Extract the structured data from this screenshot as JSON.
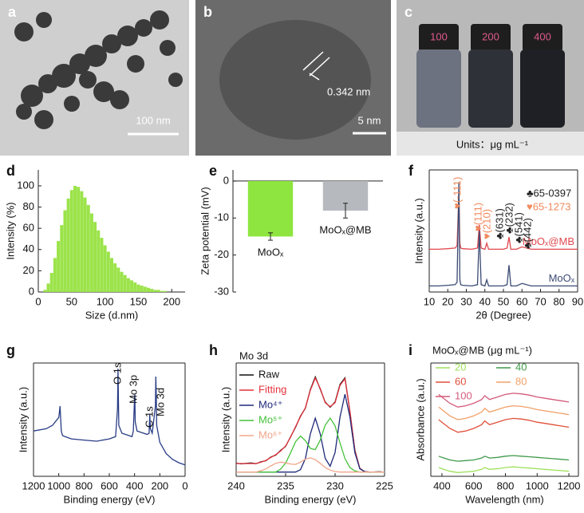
{
  "images": [
    {
      "label": "a",
      "scale_bar": "100 nm"
    },
    {
      "label": "b",
      "annotation": "0.342 nm",
      "scale_bar": "5 nm"
    },
    {
      "label": "c",
      "vials": [
        "100",
        "200",
        "400"
      ],
      "caption": "Units：μg mL⁻¹"
    }
  ],
  "chart_data": [
    {
      "type": "bar",
      "label": "d",
      "xlabel": "Size (d.nm)",
      "ylabel": "Intensity (%)",
      "color": "#9be34a",
      "x": [
        10,
        15,
        20,
        25,
        30,
        35,
        40,
        45,
        50,
        55,
        60,
        65,
        70,
        75,
        80,
        85,
        90,
        95,
        100,
        105,
        110,
        115,
        120,
        125,
        130,
        135,
        140,
        145,
        150,
        155,
        160,
        165,
        170,
        175,
        180,
        185,
        190
      ],
      "values": [
        2,
        8,
        18,
        32,
        48,
        63,
        77,
        88,
        96,
        100,
        99,
        95,
        89,
        82,
        74,
        66,
        58,
        51,
        44,
        38,
        32,
        27,
        23,
        19,
        16,
        13,
        11,
        9,
        7,
        6,
        5,
        4,
        3,
        2,
        2,
        1,
        1
      ],
      "xlim": [
        0,
        220
      ],
      "xticks": [
        0,
        50,
        100,
        150,
        200
      ],
      "ylim": [
        0,
        115
      ],
      "yticks": [
        0,
        20,
        40,
        60,
        80,
        100
      ]
    },
    {
      "type": "bar",
      "label": "e",
      "ylabel": "Zeta potential (mV)",
      "categories": [
        "MoOₓ",
        "MoOₓ@MB"
      ],
      "values": [
        -15,
        -8
      ],
      "errors": [
        1,
        2
      ],
      "colors": [
        "#8ee53f",
        "#b6b9bd"
      ],
      "ylim": [
        -30,
        3
      ],
      "yticks": [
        0,
        -10,
        -20,
        -30
      ]
    },
    {
      "type": "line",
      "label": "f",
      "xlabel": "2θ (Degree)",
      "ylabel": "Intensity (a.u.)",
      "x": [
        10,
        15,
        20,
        24,
        25,
        26,
        26.5,
        27,
        28,
        33,
        36,
        37,
        38,
        40,
        41,
        42,
        45,
        50,
        52,
        53,
        54,
        57,
        60,
        65,
        70,
        75,
        80,
        85,
        90
      ],
      "series": [
        {
          "name": "MoOₓ@MB",
          "color": "#e0484f",
          "values": [
            35,
            35,
            35.5,
            36,
            38,
            80,
            40,
            36,
            35.5,
            35,
            36,
            55,
            36,
            35,
            40,
            35,
            35,
            35,
            36,
            45,
            35,
            35,
            37,
            35,
            35,
            35,
            35,
            35,
            35
          ]
        },
        {
          "name": "MoOₓ",
          "color": "#3a4a73",
          "values": [
            5,
            5,
            5.5,
            6,
            8,
            90,
            10,
            6,
            5.5,
            5,
            6,
            50,
            6,
            5,
            10,
            5,
            5,
            5,
            6,
            22,
            5,
            5,
            7,
            5,
            5,
            5,
            5,
            5,
            5
          ]
        }
      ],
      "legend": [
        {
          "text": "♣65-0397",
          "color": "#222222"
        },
        {
          "text": "♥65-1273",
          "color": "#f08a5d"
        }
      ],
      "annotations": [
        {
          "text": "♥(-111)",
          "color": "#f08a5d"
        },
        {
          "text": "♥(111)",
          "color": "#f08a5d"
        },
        {
          "text": "♥(210)",
          "color": "#f08a5d"
        },
        {
          "text": "♣(631)",
          "color": "#222222"
        },
        {
          "text": "♣(232)",
          "color": "#222222"
        },
        {
          "text": "♣(541)",
          "color": "#222222"
        },
        {
          "text": "♣(442)",
          "color": "#222222"
        }
      ],
      "xlim": [
        10,
        90
      ],
      "xticks": [
        10,
        20,
        30,
        40,
        50,
        60,
        70,
        80,
        90
      ],
      "ylim": [
        0,
        100
      ]
    },
    {
      "type": "line",
      "label": "g",
      "xlabel": "Binding energy (eV)",
      "ylabel": "Intensity (a.u.)",
      "color": "#283c86",
      "x": [
        1200,
        1100,
        1050,
        1000,
        990,
        980,
        970,
        950,
        900,
        800,
        700,
        600,
        550,
        535,
        531,
        525,
        500,
        420,
        410,
        400,
        398,
        395,
        380,
        300,
        285,
        280,
        275,
        260,
        235,
        232,
        228,
        225,
        200,
        150,
        100,
        50,
        0
      ],
      "values": [
        40,
        42,
        45,
        52,
        62,
        40,
        36,
        35,
        33,
        32,
        31,
        33,
        35,
        60,
        95,
        45,
        38,
        35,
        40,
        70,
        72,
        48,
        40,
        37,
        38,
        55,
        42,
        38,
        62,
        88,
        70,
        45,
        30,
        20,
        15,
        12,
        10
      ],
      "annotations": [
        {
          "text": "O 1s"
        },
        {
          "text": "Mo 3p"
        },
        {
          "text": "C 1s"
        },
        {
          "text": "Mo 3d"
        }
      ],
      "xlim": [
        1200,
        0
      ],
      "xticks": [
        1200,
        1000,
        800,
        600,
        400,
        200,
        0
      ],
      "ylim": [
        0,
        100
      ]
    },
    {
      "type": "line",
      "label": "h",
      "title": "Mo 3d",
      "xlabel": "Binding energy (eV)",
      "ylabel": "Intensity (a.u.)",
      "x": [
        240,
        239.5,
        239,
        238.5,
        238,
        237.5,
        237,
        236.5,
        236,
        235.5,
        235,
        234.5,
        234,
        233.5,
        233,
        232.5,
        232,
        231.5,
        231,
        230.5,
        230,
        229.5,
        229,
        228.5,
        228,
        227.5,
        227,
        226.5,
        226,
        225.5,
        225
      ],
      "series": [
        {
          "name": "Raw",
          "color": "#111111",
          "values": [
            9.3,
            8.8,
            9.1,
            9.4,
            8.9,
            10.2,
            11.0,
            13.6,
            15.0,
            18.3,
            21.1,
            27.9,
            34.6,
            42.5,
            48.1,
            61.3,
            70.2,
            61.5,
            52.4,
            48.8,
            52.5,
            64.9,
            69.5,
            45.6,
            18.5,
            5.4,
            3.4,
            2.8,
            3.1,
            3.2,
            2.9
          ]
        },
        {
          "name": "Fitting",
          "color": "#e5323c",
          "values": [
            9,
            9,
            9,
            9,
            9,
            9.9,
            11.2,
            13.3,
            15.2,
            17.9,
            21.4,
            27.6,
            35,
            42.1,
            48.4,
            60.8,
            69.4,
            62,
            52,
            49.2,
            52,
            64.2,
            68.9,
            46.1,
            18.1,
            5.7,
            3.2,
            3,
            3,
            3,
            3
          ]
        },
        {
          "name": "Mo⁴⁺",
          "color": "#1f2a7a",
          "values": [
            3,
            3,
            3,
            3,
            3,
            3,
            3,
            3,
            3,
            3,
            3,
            3,
            3,
            4.7,
            12.5,
            29.9,
            41,
            29.9,
            12.7,
            7.1,
            16.8,
            41.9,
            58,
            41.9,
            16.7,
            5.4,
            3.2,
            3,
            3,
            3,
            3
          ]
        },
        {
          "name": "Mo⁵⁺",
          "color": "#44c23a",
          "values": [
            3,
            3,
            3,
            3,
            3,
            3,
            3,
            3,
            3,
            5.1,
            9.3,
            16.5,
            24.4,
            28.4,
            25.2,
            19.7,
            18.8,
            25.6,
            36.1,
            41.1,
            35.6,
            23.5,
            12.5,
            6.2,
            3.8,
            3,
            3,
            3,
            3,
            3,
            3
          ]
        },
        {
          "name": "Mo⁶⁺",
          "color": "#f0a58a",
          "values": [
            3,
            3,
            3,
            3,
            3,
            3.9,
            5.2,
            7.3,
            9.2,
            10,
            9.5,
            8.7,
            8.4,
            10,
            12.1,
            13,
            11.8,
            9.1,
            6.2,
            4.4,
            3.4,
            3,
            3,
            3,
            3,
            3,
            3,
            3,
            3,
            3,
            3
          ]
        }
      ],
      "xlim": [
        240,
        225
      ],
      "xticks": [
        240,
        235,
        230,
        225
      ],
      "ylim": [
        0,
        80
      ]
    },
    {
      "type": "line",
      "label": "i",
      "legend_title": "MoOₓ@MB  (μg mL⁻¹)",
      "xlabel": "Wavelength (nm)",
      "ylabel": "Absorbance (a.u.)",
      "x": [
        380,
        400,
        450,
        500,
        550,
        600,
        650,
        670,
        700,
        750,
        800,
        850,
        900,
        950,
        1000,
        1050,
        1100,
        1150,
        1200
      ],
      "series": [
        {
          "name": "20",
          "color": "#9ee05a",
          "values": [
            7,
            6,
            4,
            3,
            3.5,
            4,
            5.5,
            7,
            5.5,
            6,
            7,
            7.5,
            7,
            6.5,
            6,
            5.5,
            5,
            4.5,
            4
          ]
        },
        {
          "name": "40",
          "color": "#3f9a4a",
          "values": [
            16,
            15,
            13,
            12,
            12.5,
            13,
            14.5,
            16,
            14.5,
            15,
            16,
            16.5,
            16,
            15.5,
            15,
            14.5,
            14,
            13.5,
            13
          ]
        },
        {
          "name": "60",
          "color": "#e0503a",
          "values": [
            45,
            43,
            38,
            35,
            36,
            38,
            41,
            44,
            41,
            43,
            45,
            46,
            45.5,
            44.5,
            43,
            42,
            41,
            40,
            39
          ]
        },
        {
          "name": "80",
          "color": "#f0a068",
          "values": [
            55,
            53,
            48,
            45,
            46,
            48,
            51,
            54,
            51,
            53,
            55,
            56,
            55.5,
            54.5,
            53,
            52,
            51,
            50,
            49
          ]
        },
        {
          "name": "100",
          "color": "#d45a7a",
          "values": [
            65,
            63,
            58,
            55,
            56,
            58,
            61,
            64,
            61,
            63,
            65,
            66,
            65.5,
            64.5,
            63,
            62,
            61,
            60,
            59
          ]
        }
      ],
      "xlim": [
        330,
        1260
      ],
      "xticks": [
        400,
        600,
        800,
        1000,
        1200
      ],
      "ylim": [
        0,
        90
      ]
    }
  ]
}
